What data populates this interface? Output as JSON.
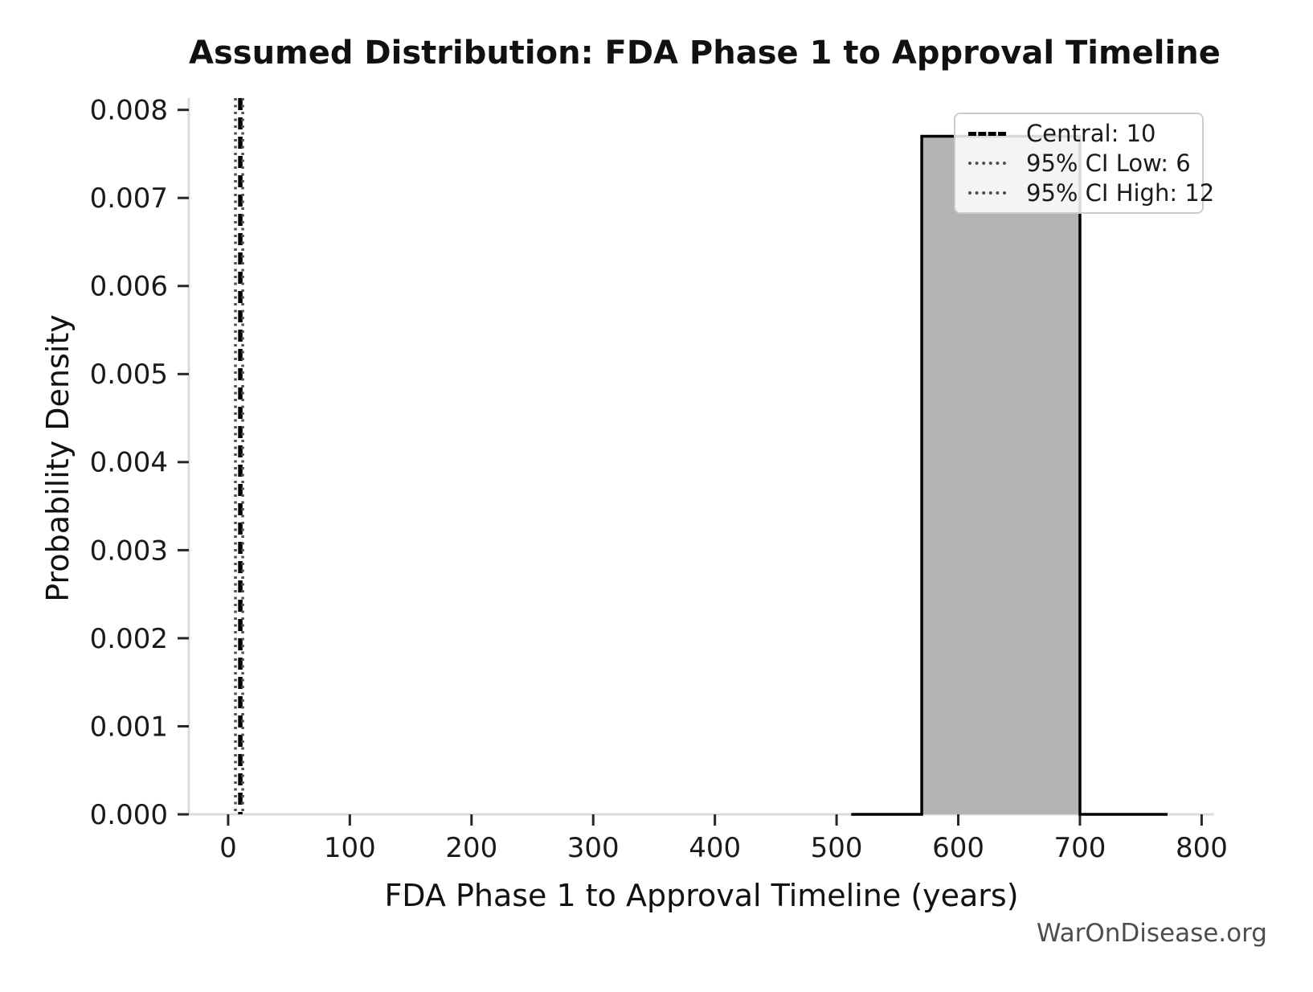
{
  "chart_data": {
    "type": "histogram",
    "title": "Assumed Distribution: FDA Phase 1 to Approval Timeline",
    "xlabel": "FDA Phase 1 to Approval Timeline (years)",
    "ylabel": "Probability Density",
    "source_watermark": "WarOnDisease.org",
    "xlim": [
      -32.3,
      810.3
    ],
    "ylim": [
      0,
      0.008134
    ],
    "x_ticks": [
      0,
      100,
      200,
      300,
      400,
      500,
      600,
      700,
      800
    ],
    "x_tick_labels": [
      "0",
      "100",
      "200",
      "300",
      "400",
      "500",
      "600",
      "700",
      "800"
    ],
    "y_ticks": [
      0.0,
      0.001,
      0.002,
      0.003,
      0.004,
      0.005,
      0.006,
      0.007,
      0.008
    ],
    "y_tick_labels": [
      "0.000",
      "0.001",
      "0.002",
      "0.003",
      "0.004",
      "0.005",
      "0.006",
      "0.007",
      "0.008"
    ],
    "grid": false,
    "legend_position": "upper right",
    "bar_fill_color": "#b3b3b3",
    "bar_edge_color": "#000000",
    "spine_color": "#dcdcdc",
    "tick_color": "#262626",
    "series": {
      "histogram_bar": {
        "x_start": 570,
        "x_end": 700,
        "density": 0.0077
      },
      "density_outline": [
        [
          512,
          0
        ],
        [
          570,
          0
        ],
        [
          570,
          0.0077
        ],
        [
          700,
          0.0077
        ],
        [
          700,
          0
        ],
        [
          772,
          0
        ]
      ]
    },
    "vlines": [
      {
        "name": "central",
        "value": 10,
        "style": "dashed",
        "color": "#000000",
        "label": "Central: 10"
      },
      {
        "name": "ci-low",
        "value": 6,
        "style": "dotted",
        "color": "#4f4f4f",
        "label": "95% CI Low: 6"
      },
      {
        "name": "ci-high",
        "value": 12,
        "style": "dotted",
        "color": "#4f4f4f",
        "label": "95% CI High: 12"
      }
    ]
  }
}
